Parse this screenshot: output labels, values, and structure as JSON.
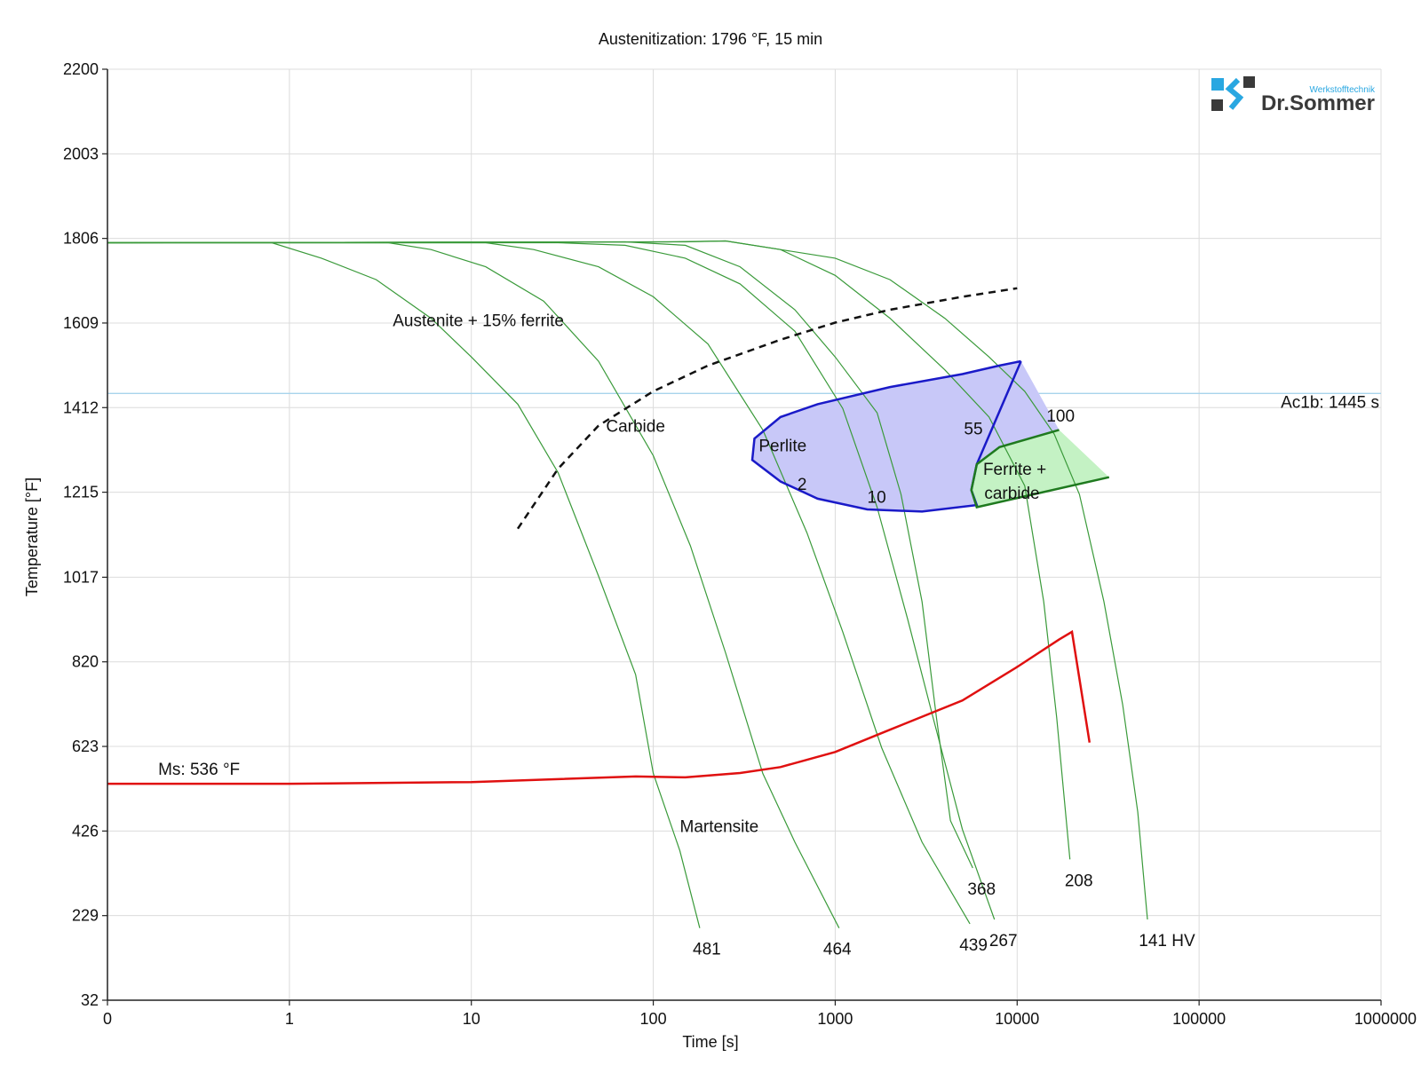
{
  "chart_data": {
    "type": "line",
    "title": "Austenitization: 1796 °F, 15 min",
    "xlabel": "Time [s]",
    "ylabel": "Temperature [°F]",
    "x_scale": "log",
    "x_tick_labels": [
      "0",
      "1",
      "10",
      "100",
      "1000",
      "10000",
      "100000",
      "1000000"
    ],
    "y_ticks": [
      32,
      229,
      426,
      623,
      820,
      1017,
      1215,
      1412,
      1609,
      1806,
      2003,
      2200
    ],
    "ylim": [
      32,
      2200
    ],
    "grid": true,
    "colors": {
      "cooling_curve": "#3a9a3a",
      "perlite_fill": "#c8c8f8",
      "perlite_edge": "#1a1ac8",
      "ferrite_fill": "#c4f2c4",
      "ferrite_edge": "#1f7a1f",
      "ms_line": "#e01010",
      "ac1b_line": "#a8d4ec",
      "dashed": "#111111"
    },
    "logo": {
      "brand": "Dr.Sommer",
      "tagline": "Werkstofftechnik"
    },
    "ac1b_label": "Ac1b: 1445 s",
    "ac1b_temperature": 1445,
    "ms_label": "Ms: 536 °F",
    "regions": {
      "austenite": "Austenite + 15% ferrite",
      "carbide": "Carbide",
      "perlite": "Perlite",
      "ferrite_carbide_line1": "Ferrite +",
      "ferrite_carbide_line2": "carbide",
      "martensite": "Martensite"
    },
    "percent_labels": [
      "2",
      "10",
      "55",
      "100"
    ],
    "cooling_curves": [
      {
        "hardness": "481",
        "points": [
          [
            0.1,
            1796
          ],
          [
            0.8,
            1796
          ],
          [
            1.5,
            1760
          ],
          [
            3,
            1710
          ],
          [
            6,
            1620
          ],
          [
            10,
            1530
          ],
          [
            18,
            1420
          ],
          [
            30,
            1260
          ],
          [
            50,
            1020
          ],
          [
            80,
            790
          ],
          [
            100,
            560
          ],
          [
            140,
            380
          ],
          [
            180,
            200
          ]
        ]
      },
      {
        "hardness": "464",
        "points": [
          [
            0.1,
            1796
          ],
          [
            3.5,
            1796
          ],
          [
            6,
            1780
          ],
          [
            12,
            1740
          ],
          [
            25,
            1660
          ],
          [
            50,
            1520
          ],
          [
            100,
            1300
          ],
          [
            160,
            1090
          ],
          [
            250,
            840
          ],
          [
            400,
            560
          ],
          [
            600,
            400
          ],
          [
            1050,
            200
          ]
        ]
      },
      {
        "hardness": "439",
        "points": [
          [
            0.1,
            1796
          ],
          [
            12,
            1796
          ],
          [
            22,
            1780
          ],
          [
            50,
            1740
          ],
          [
            100,
            1670
          ],
          [
            200,
            1560
          ],
          [
            400,
            1360
          ],
          [
            700,
            1120
          ],
          [
            1100,
            890
          ],
          [
            1800,
            620
          ],
          [
            3000,
            400
          ],
          [
            5500,
            210
          ]
        ]
      },
      {
        "hardness": "267",
        "points": [
          [
            0.1,
            1796
          ],
          [
            30,
            1796
          ],
          [
            70,
            1790
          ],
          [
            150,
            1760
          ],
          [
            300,
            1700
          ],
          [
            600,
            1590
          ],
          [
            1100,
            1410
          ],
          [
            1700,
            1180
          ],
          [
            2500,
            920
          ],
          [
            3500,
            680
          ],
          [
            5000,
            430
          ],
          [
            7500,
            220
          ]
        ]
      },
      {
        "hardness": "368",
        "points": [
          [
            0.1,
            1796
          ],
          [
            70,
            1798
          ],
          [
            150,
            1790
          ],
          [
            300,
            1740
          ],
          [
            600,
            1640
          ],
          [
            1000,
            1530
          ],
          [
            1700,
            1400
          ],
          [
            2300,
            1210
          ],
          [
            3000,
            960
          ],
          [
            3600,
            690
          ],
          [
            4300,
            450
          ],
          [
            5700,
            340
          ]
        ]
      },
      {
        "hardness": "208",
        "points": [
          [
            0.1,
            1796
          ],
          [
            120,
            1798
          ],
          [
            250,
            1800
          ],
          [
            500,
            1780
          ],
          [
            1000,
            1720
          ],
          [
            2000,
            1620
          ],
          [
            4000,
            1500
          ],
          [
            7000,
            1390
          ],
          [
            11000,
            1230
          ],
          [
            14000,
            960
          ],
          [
            16500,
            690
          ],
          [
            19500,
            360
          ]
        ]
      },
      {
        "hardness": "141 HV",
        "points": [
          [
            0.1,
            1796
          ],
          [
            150,
            1798
          ],
          [
            250,
            1800
          ],
          [
            500,
            1780
          ],
          [
            1000,
            1760
          ],
          [
            2000,
            1710
          ],
          [
            4000,
            1620
          ],
          [
            7000,
            1530
          ],
          [
            11000,
            1450
          ],
          [
            16000,
            1350
          ],
          [
            22000,
            1210
          ],
          [
            30000,
            960
          ],
          [
            38000,
            720
          ],
          [
            46000,
            470
          ],
          [
            52000,
            220
          ]
        ]
      }
    ],
    "dashed_boundary": [
      [
        18,
        1130
      ],
      [
        30,
        1270
      ],
      [
        50,
        1370
      ],
      [
        100,
        1450
      ],
      [
        200,
        1510
      ],
      [
        500,
        1570
      ],
      [
        1000,
        1610
      ],
      [
        2000,
        1640
      ],
      [
        5000,
        1670
      ],
      [
        10000,
        1690
      ]
    ],
    "perlite_region": [
      [
        10500,
        1520
      ],
      [
        17000,
        1360
      ],
      [
        8000,
        1320
      ],
      [
        6000,
        1280
      ],
      [
        5600,
        1220
      ],
      [
        6000,
        1185
      ],
      [
        3000,
        1170
      ],
      [
        1500,
        1175
      ],
      [
        800,
        1200
      ],
      [
        500,
        1240
      ],
      [
        350,
        1290
      ],
      [
        360,
        1340
      ],
      [
        500,
        1390
      ],
      [
        800,
        1420
      ],
      [
        2000,
        1460
      ],
      [
        5000,
        1490
      ],
      [
        8000,
        1510
      ]
    ],
    "ferrite_region": [
      [
        17000,
        1360
      ],
      [
        32000,
        1250
      ],
      [
        6000,
        1180
      ],
      [
        5600,
        1220
      ],
      [
        6000,
        1280
      ],
      [
        8000,
        1320
      ]
    ],
    "ms_curve": [
      [
        0.1,
        536
      ],
      [
        1,
        536
      ],
      [
        10,
        540
      ],
      [
        80,
        553
      ],
      [
        150,
        551
      ],
      [
        300,
        561
      ],
      [
        500,
        575
      ],
      [
        1000,
        610
      ],
      [
        2000,
        662
      ],
      [
        5000,
        730
      ],
      [
        10000,
        808
      ],
      [
        17000,
        872
      ],
      [
        20000,
        890
      ],
      [
        25000,
        632
      ]
    ]
  }
}
